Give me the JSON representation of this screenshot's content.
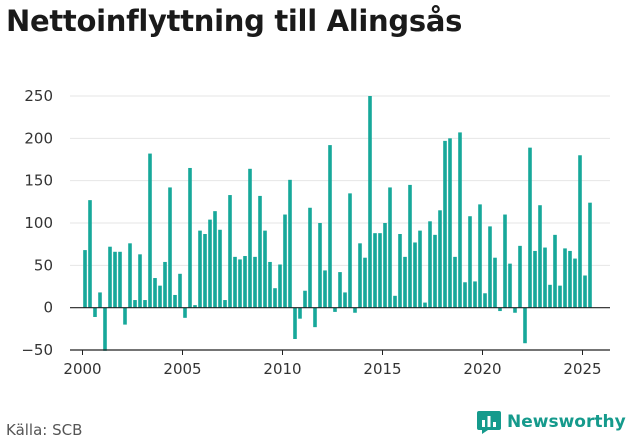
{
  "title": "Nettoinflyttning till Alingsås",
  "source": "Källa: SCB",
  "brand": "Newsworthy",
  "colors": {
    "bar": "#17a89a",
    "axis": "#222222",
    "grid": "#e6e6e6",
    "brand": "#159a8c"
  },
  "icons": {
    "brand_logo": "newsworthy-chart-bubble-icon"
  },
  "chart_data": {
    "type": "bar",
    "title": "Nettoinflyttning till Alingsås",
    "xlabel": "",
    "ylabel": "",
    "ylim": [
      -50,
      250
    ],
    "xlim": [
      1999.375,
      2026.375
    ],
    "yticks": [
      -50,
      0,
      50,
      100,
      150,
      200,
      250
    ],
    "xticks": [
      2000,
      2005,
      2010,
      2015,
      2020,
      2025
    ],
    "grid": "horizontal",
    "legend": "none",
    "x": [
      2000.125,
      2000.375,
      2000.625,
      2000.875,
      2001.125,
      2001.375,
      2001.625,
      2001.875,
      2002.125,
      2002.375,
      2002.625,
      2002.875,
      2003.125,
      2003.375,
      2003.625,
      2003.875,
      2004.125,
      2004.375,
      2004.625,
      2004.875,
      2005.125,
      2005.375,
      2005.625,
      2005.875,
      2006.125,
      2006.375,
      2006.625,
      2006.875,
      2007.125,
      2007.375,
      2007.625,
      2007.875,
      2008.125,
      2008.375,
      2008.625,
      2008.875,
      2009.125,
      2009.375,
      2009.625,
      2009.875,
      2010.125,
      2010.375,
      2010.625,
      2010.875,
      2011.125,
      2011.375,
      2011.625,
      2011.875,
      2012.125,
      2012.375,
      2012.625,
      2012.875,
      2013.125,
      2013.375,
      2013.625,
      2013.875,
      2014.125,
      2014.375,
      2014.625,
      2014.875,
      2015.125,
      2015.375,
      2015.625,
      2015.875,
      2016.125,
      2016.375,
      2016.625,
      2016.875,
      2017.125,
      2017.375,
      2017.625,
      2017.875,
      2018.125,
      2018.375,
      2018.625,
      2018.875,
      2019.125,
      2019.375,
      2019.625,
      2019.875,
      2020.125,
      2020.375,
      2020.625,
      2020.875,
      2021.125,
      2021.375,
      2021.625,
      2021.875,
      2022.125,
      2022.375,
      2022.625,
      2022.875,
      2023.125,
      2023.375,
      2023.625,
      2023.875,
      2024.125,
      2024.375,
      2024.625,
      2024.875,
      2025.125,
      2025.375
    ],
    "values": [
      68,
      127,
      -11,
      18,
      -51,
      72,
      66,
      66,
      -20,
      76,
      9,
      63,
      9,
      182,
      35,
      26,
      54,
      142,
      15,
      40,
      -12,
      165,
      3,
      91,
      87,
      104,
      114,
      92,
      9,
      133,
      60,
      57,
      61,
      164,
      60,
      132,
      91,
      54,
      23,
      51,
      110,
      151,
      -37,
      -13,
      20,
      118,
      -23,
      100,
      44,
      192,
      -5,
      42,
      18,
      135,
      -6,
      76,
      59,
      250,
      88,
      88,
      100,
      142,
      14,
      87,
      60,
      145,
      77,
      91,
      6,
      102,
      86,
      115,
      197,
      200,
      60,
      207,
      30,
      108,
      31,
      122,
      17,
      96,
      59,
      -4,
      110,
      52,
      -6,
      73,
      -42,
      189,
      67,
      121,
      71,
      27,
      86,
      26,
      70,
      67,
      58,
      180,
      38,
      124
    ]
  }
}
